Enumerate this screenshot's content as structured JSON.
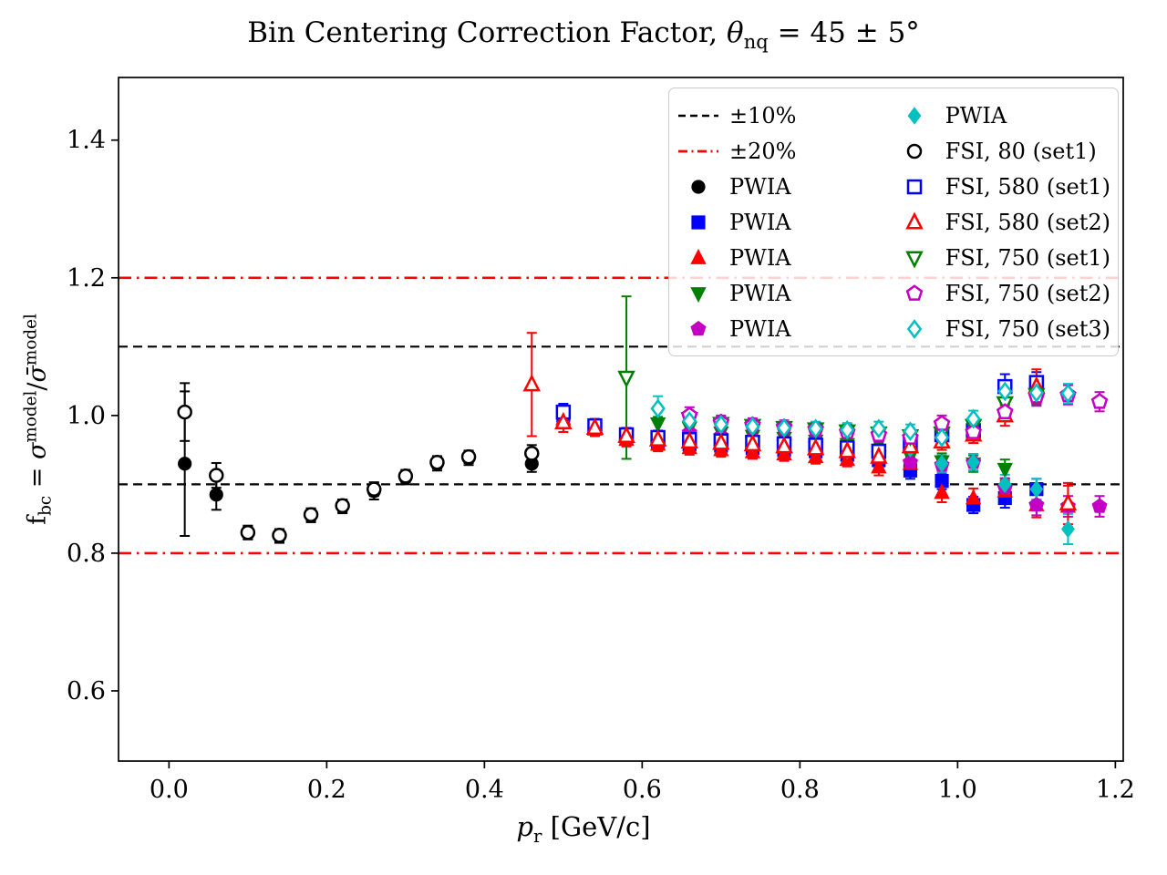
{
  "title": {
    "prefix": "Bin Centering Correction Factor, ",
    "theta": "θ",
    "theta_sub": "nq",
    "suffix": " = 45 ± 5°"
  },
  "axes": {
    "xlabel": {
      "p": "p",
      "sub": "r",
      "rest": " [GeV/c]"
    },
    "ylabel": {
      "f": "f",
      "sub": "bc",
      "eq": " = ",
      "sigma": "σ",
      "sup1": "model",
      "slash": "/",
      "sigmabar": "σ̄",
      "sup2": "model"
    }
  },
  "chart_data": {
    "type": "scatter",
    "title": "Bin Centering Correction Factor, θnq = 45 ± 5°",
    "xlabel": "pr [GeV/c]",
    "ylabel": "fbc = σmodel/σ̄model",
    "xlim": [
      -0.064,
      1.21
    ],
    "ylim": [
      0.498,
      1.491
    ],
    "xticks": [
      "0.0",
      "0.2",
      "0.4",
      "0.6",
      "0.8",
      "1.0",
      "1.2"
    ],
    "xtick_values": [
      0.0,
      0.2,
      0.4,
      0.6,
      0.8,
      1.0,
      1.2
    ],
    "yticks": [
      "0.6",
      "0.8",
      "1.0",
      "1.2",
      "1.4"
    ],
    "ytick_values": [
      0.6,
      0.8,
      1.0,
      1.2,
      1.4
    ],
    "grid": false,
    "legend_position": "upper right",
    "reference_lines": [
      {
        "y": 1.1,
        "color": "#000000",
        "style": "dashed",
        "legend": "±10%"
      },
      {
        "y": 0.9,
        "color": "#000000",
        "style": "dashed"
      },
      {
        "y": 1.2,
        "color": "#ff0000",
        "style": "dashdot",
        "legend": "±20%"
      },
      {
        "y": 0.8,
        "color": "#ff0000",
        "style": "dashdot"
      }
    ],
    "series": [
      {
        "legend": "PWIA",
        "marker": "circle",
        "color": "#000000",
        "fill": "filled",
        "points": [
          [
            0.02,
            0.93,
            0.105
          ],
          [
            0.06,
            0.885,
            0.022
          ],
          [
            0.1,
            0.83,
            0.01
          ],
          [
            0.14,
            0.825,
            0.01
          ],
          [
            0.18,
            0.855,
            0.01
          ],
          [
            0.22,
            0.868,
            0.01
          ],
          [
            0.26,
            0.89,
            0.012
          ],
          [
            0.3,
            0.91,
            0.01
          ],
          [
            0.34,
            0.93,
            0.01
          ],
          [
            0.38,
            0.938,
            0.01
          ],
          [
            0.46,
            0.93,
            0.012
          ]
        ]
      },
      {
        "legend": "PWIA",
        "marker": "square",
        "color": "#0000ff",
        "fill": "filled",
        "points": [
          [
            0.5,
            1.0,
            0.012
          ],
          [
            0.54,
            0.983,
            0.01
          ],
          [
            0.58,
            0.968,
            0.01
          ],
          [
            0.62,
            0.962,
            0.01
          ],
          [
            0.66,
            0.958,
            0.01
          ],
          [
            0.7,
            0.956,
            0.01
          ],
          [
            0.74,
            0.953,
            0.01
          ],
          [
            0.78,
            0.95,
            0.01
          ],
          [
            0.82,
            0.948,
            0.01
          ],
          [
            0.86,
            0.943,
            0.01
          ],
          [
            0.9,
            0.935,
            0.01
          ],
          [
            0.94,
            0.92,
            0.012
          ],
          [
            0.98,
            0.905,
            0.012
          ],
          [
            1.02,
            0.87,
            0.012
          ],
          [
            1.06,
            0.88,
            0.014
          ],
          [
            1.1,
            0.893,
            0.015
          ]
        ]
      },
      {
        "legend": "PWIA",
        "marker": "triangle-up",
        "color": "#ff0000",
        "fill": "filled",
        "points": [
          [
            0.5,
            0.995,
            0.012
          ],
          [
            0.54,
            0.98,
            0.01
          ],
          [
            0.58,
            0.965,
            0.01
          ],
          [
            0.62,
            0.958,
            0.01
          ],
          [
            0.66,
            0.953,
            0.01
          ],
          [
            0.7,
            0.95,
            0.01
          ],
          [
            0.74,
            0.947,
            0.01
          ],
          [
            0.78,
            0.944,
            0.01
          ],
          [
            0.82,
            0.94,
            0.01
          ],
          [
            0.86,
            0.936,
            0.01
          ],
          [
            0.9,
            0.925,
            0.012
          ],
          [
            0.94,
            0.93,
            0.012
          ],
          [
            0.98,
            0.888,
            0.014
          ],
          [
            1.02,
            0.88,
            0.014
          ],
          [
            1.06,
            0.89,
            0.015
          ],
          [
            1.1,
            0.87,
            0.018
          ],
          [
            1.14,
            0.868,
            0.03
          ]
        ]
      },
      {
        "legend": "PWIA",
        "marker": "triangle-down",
        "color": "#008000",
        "fill": "filled",
        "points": [
          [
            0.62,
            0.988,
            0.01
          ],
          [
            0.66,
            0.982,
            0.01
          ],
          [
            0.7,
            0.975,
            0.01
          ],
          [
            0.74,
            0.97,
            0.01
          ],
          [
            0.78,
            0.967,
            0.01
          ],
          [
            0.82,
            0.963,
            0.01
          ],
          [
            0.86,
            0.958,
            0.01
          ],
          [
            0.9,
            0.95,
            0.01
          ],
          [
            0.94,
            0.94,
            0.012
          ],
          [
            0.98,
            0.933,
            0.012
          ],
          [
            1.02,
            0.93,
            0.012
          ],
          [
            1.06,
            0.922,
            0.014
          ]
        ]
      },
      {
        "legend": "PWIA",
        "marker": "pentagon",
        "color": "#c300c3",
        "fill": "filled",
        "points": [
          [
            0.66,
            0.975,
            0.01
          ],
          [
            0.7,
            0.97,
            0.01
          ],
          [
            0.74,
            0.966,
            0.01
          ],
          [
            0.78,
            0.962,
            0.01
          ],
          [
            0.82,
            0.958,
            0.01
          ],
          [
            0.86,
            0.952,
            0.01
          ],
          [
            0.9,
            0.945,
            0.01
          ],
          [
            0.94,
            0.932,
            0.012
          ],
          [
            0.98,
            0.928,
            0.012
          ],
          [
            1.02,
            0.932,
            0.012
          ],
          [
            1.06,
            0.895,
            0.014
          ],
          [
            1.1,
            0.87,
            0.015
          ],
          [
            1.14,
            0.868,
            0.015
          ],
          [
            1.18,
            0.868,
            0.015
          ]
        ]
      },
      {
        "legend": "PWIA",
        "marker": "diamond",
        "color": "#00c0c0",
        "fill": "filled",
        "points": [
          [
            0.7,
            0.963,
            0.01
          ],
          [
            0.74,
            0.96,
            0.01
          ],
          [
            0.78,
            0.957,
            0.01
          ],
          [
            0.82,
            0.954,
            0.01
          ],
          [
            0.86,
            0.949,
            0.01
          ],
          [
            0.9,
            0.943,
            0.01
          ],
          [
            0.94,
            0.952,
            0.012
          ],
          [
            0.98,
            0.93,
            0.012
          ],
          [
            1.02,
            0.932,
            0.012
          ],
          [
            1.06,
            0.9,
            0.014
          ],
          [
            1.1,
            0.893,
            0.015
          ],
          [
            1.14,
            0.835,
            0.022
          ]
        ]
      },
      {
        "legend": "FSI, 80 (set1)",
        "marker": "circle",
        "color": "#000000",
        "fill": "open",
        "points": [
          [
            0.02,
            1.005,
            0.042
          ],
          [
            0.06,
            0.913,
            0.018
          ],
          [
            0.1,
            0.83,
            0.009
          ],
          [
            0.14,
            0.826,
            0.009
          ],
          [
            0.18,
            0.856,
            0.009
          ],
          [
            0.22,
            0.869,
            0.009
          ],
          [
            0.26,
            0.893,
            0.01
          ],
          [
            0.3,
            0.912,
            0.009
          ],
          [
            0.34,
            0.932,
            0.009
          ],
          [
            0.38,
            0.94,
            0.009
          ],
          [
            0.46,
            0.945,
            0.012
          ]
        ]
      },
      {
        "legend": "FSI, 580 (set1)",
        "marker": "square",
        "color": "#0000ff",
        "fill": "open",
        "points": [
          [
            0.5,
            1.005,
            0.012
          ],
          [
            0.54,
            0.985,
            0.01
          ],
          [
            0.58,
            0.972,
            0.01
          ],
          [
            0.62,
            0.968,
            0.01
          ],
          [
            0.66,
            0.965,
            0.01
          ],
          [
            0.7,
            0.963,
            0.01
          ],
          [
            0.74,
            0.961,
            0.01
          ],
          [
            0.78,
            0.959,
            0.01
          ],
          [
            0.82,
            0.957,
            0.01
          ],
          [
            0.86,
            0.953,
            0.01
          ],
          [
            0.9,
            0.948,
            0.01
          ],
          [
            0.94,
            0.96,
            0.012
          ],
          [
            0.98,
            0.972,
            0.012
          ],
          [
            1.02,
            0.978,
            0.014
          ],
          [
            1.06,
            1.042,
            0.018
          ],
          [
            1.1,
            1.048,
            0.015
          ]
        ]
      },
      {
        "legend": "FSI, 580 (set2)",
        "marker": "triangle-up",
        "color": "#ff0000",
        "fill": "open",
        "points": [
          [
            0.46,
            1.045,
            0.075
          ],
          [
            0.5,
            0.99,
            0.014
          ],
          [
            0.54,
            0.982,
            0.01
          ],
          [
            0.58,
            0.97,
            0.01
          ],
          [
            0.62,
            0.965,
            0.01
          ],
          [
            0.66,
            0.962,
            0.01
          ],
          [
            0.7,
            0.96,
            0.01
          ],
          [
            0.74,
            0.958,
            0.01
          ],
          [
            0.78,
            0.955,
            0.01
          ],
          [
            0.82,
            0.952,
            0.01
          ],
          [
            0.86,
            0.948,
            0.01
          ],
          [
            0.9,
            0.94,
            0.01
          ],
          [
            0.94,
            0.955,
            0.012
          ],
          [
            0.98,
            0.962,
            0.012
          ],
          [
            1.02,
            0.972,
            0.012
          ],
          [
            1.06,
            1.0,
            0.015
          ],
          [
            1.1,
            1.042,
            0.025
          ],
          [
            1.14,
            0.872,
            0.03
          ]
        ]
      },
      {
        "legend": "FSI, 750 (set1)",
        "marker": "triangle-down",
        "color": "#008000",
        "fill": "open",
        "points": [
          [
            0.58,
            1.055,
            0.118
          ],
          [
            0.66,
            0.995,
            0.012
          ],
          [
            0.7,
            0.988,
            0.01
          ],
          [
            0.74,
            0.985,
            0.01
          ],
          [
            0.78,
            0.982,
            0.01
          ],
          [
            0.82,
            0.98,
            0.01
          ],
          [
            0.86,
            0.977,
            0.01
          ],
          [
            0.9,
            0.974,
            0.01
          ],
          [
            0.94,
            0.97,
            0.01
          ],
          [
            0.98,
            0.974,
            0.012
          ],
          [
            1.02,
            0.985,
            0.012
          ],
          [
            1.06,
            1.018,
            0.014
          ],
          [
            1.1,
            1.03,
            0.014
          ]
        ]
      },
      {
        "legend": "FSI, 750 (set2)",
        "marker": "pentagon",
        "color": "#c300c3",
        "fill": "open",
        "points": [
          [
            0.66,
            1.0,
            0.012
          ],
          [
            0.7,
            0.99,
            0.01
          ],
          [
            0.74,
            0.986,
            0.01
          ],
          [
            0.78,
            0.983,
            0.01
          ],
          [
            0.82,
            0.98,
            0.01
          ],
          [
            0.86,
            0.976,
            0.01
          ],
          [
            0.9,
            0.972,
            0.01
          ],
          [
            0.94,
            0.968,
            0.01
          ],
          [
            0.98,
            0.988,
            0.012
          ],
          [
            1.02,
            0.976,
            0.012
          ],
          [
            1.06,
            1.005,
            0.012
          ],
          [
            1.1,
            1.028,
            0.014
          ],
          [
            1.14,
            1.03,
            0.014
          ],
          [
            1.18,
            1.02,
            0.014
          ]
        ]
      },
      {
        "legend": "FSI, 750 (set3)",
        "marker": "diamond",
        "color": "#00c0c0",
        "fill": "open",
        "points": [
          [
            0.62,
            1.01,
            0.018
          ],
          [
            0.66,
            0.992,
            0.012
          ],
          [
            0.7,
            0.987,
            0.01
          ],
          [
            0.74,
            0.984,
            0.01
          ],
          [
            0.78,
            0.982,
            0.01
          ],
          [
            0.82,
            0.981,
            0.01
          ],
          [
            0.86,
            0.979,
            0.01
          ],
          [
            0.9,
            0.981,
            0.01
          ],
          [
            0.94,
            0.977,
            0.01
          ],
          [
            0.98,
            0.968,
            0.012
          ],
          [
            1.02,
            0.995,
            0.012
          ],
          [
            1.06,
            1.035,
            0.014
          ],
          [
            1.1,
            1.033,
            0.014
          ],
          [
            1.14,
            1.032,
            0.014
          ]
        ]
      }
    ]
  }
}
